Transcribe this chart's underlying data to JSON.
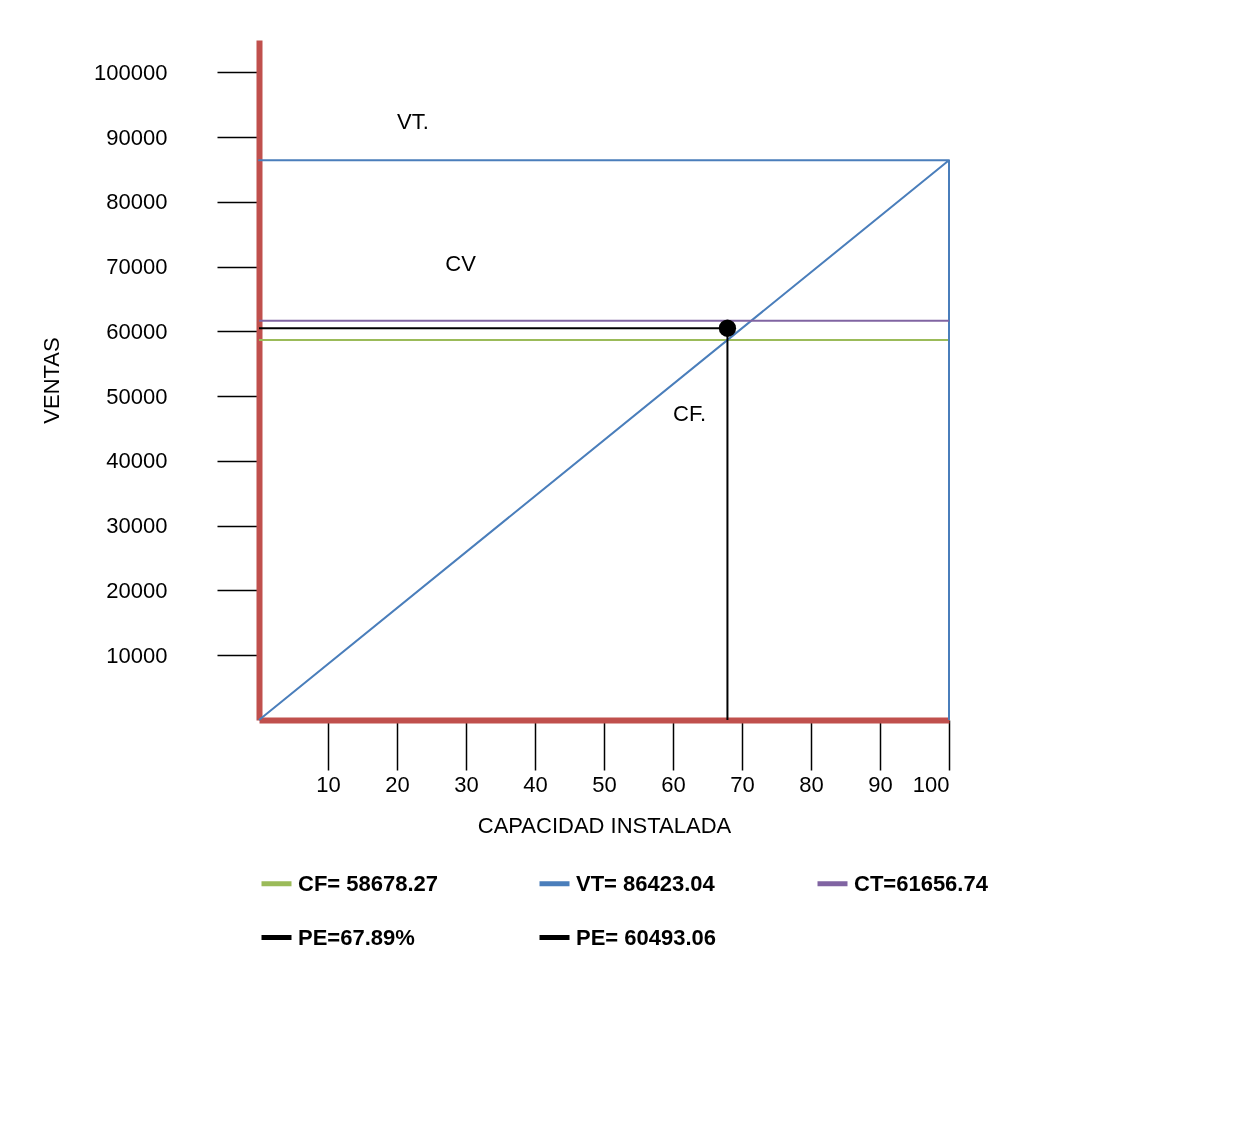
{
  "chart_data": {
    "type": "line",
    "xlabel": "CAPACIDAD INSTALADA",
    "ylabel": "VENTAS",
    "xlim": [
      0,
      100
    ],
    "ylim": [
      0,
      105000
    ],
    "xticks": [
      10,
      20,
      30,
      40,
      50,
      60,
      70,
      80,
      90,
      100
    ],
    "yticks": [
      10000,
      20000,
      30000,
      40000,
      50000,
      60000,
      70000,
      80000,
      90000,
      100000
    ],
    "grid": false,
    "legend": "bottom",
    "series": [
      {
        "name": "CF= 58678.27",
        "color": "#9bbb59",
        "x": [
          0,
          100
        ],
        "values": [
          58678.27,
          58678.27
        ]
      },
      {
        "name": "VT= 86423.04",
        "color": "#4a7ebb",
        "x": [
          0,
          100,
          0,
          100,
          100
        ],
        "values": [
          0,
          86423.04,
          86423.04,
          86423.04,
          0
        ]
      },
      {
        "name": "CT=61656.74",
        "color": "#8064a2",
        "x": [
          0,
          100
        ],
        "values": [
          61656.74,
          61656.74
        ]
      },
      {
        "name": "PE=67.89%",
        "color": "#000000",
        "x": [
          67.89,
          67.89
        ],
        "values": [
          0,
          60493.06
        ]
      },
      {
        "name": "PE= 60493.06",
        "color": "#000000",
        "x": [
          0,
          67.89
        ],
        "values": [
          60493.06,
          60493.06
        ]
      },
      {
        "type": "scatter",
        "color": "#000000",
        "x": [
          67.89
        ],
        "values": [
          60493.06
        ]
      }
    ],
    "annotations": [
      "VT.",
      "CV",
      "CF."
    ]
  }
}
